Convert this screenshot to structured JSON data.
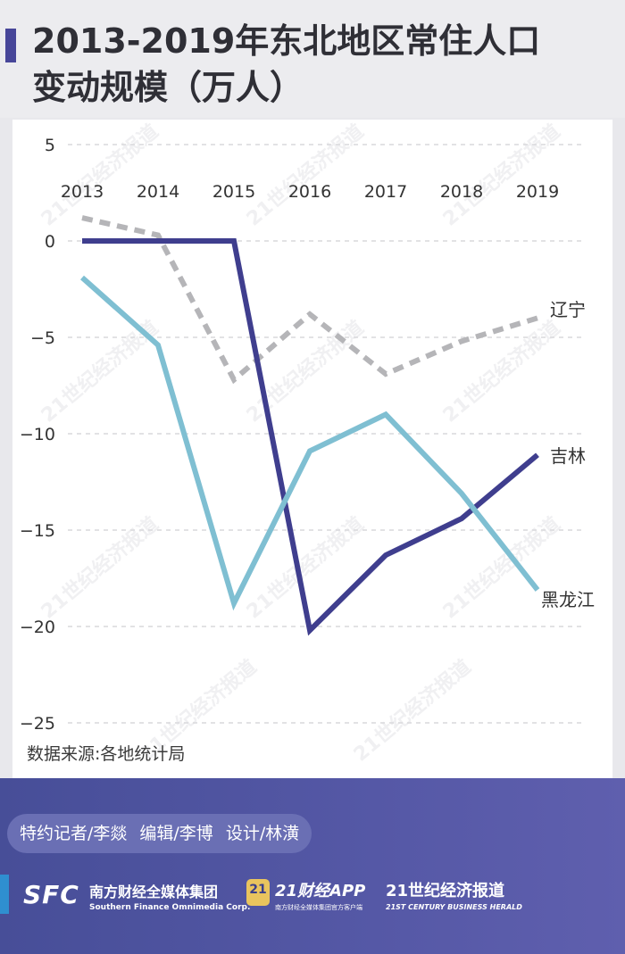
{
  "title_line1": "2013-2019年东北地区常住人口",
  "title_line2": "变动规模（万人）",
  "source": "数据来源:各地统计局",
  "credits": [
    "特约记者/李燚",
    "编辑/李博",
    "设计/林潢"
  ],
  "logos": {
    "sfc": "SFC",
    "nf_cn": "南方财经全媒体集团",
    "nf_en": "Southern Finance Omnimedia Corp.",
    "app_badge": "21",
    "app_cn": "21财经APP",
    "app_en": "南方财经全媒体集团官方客户端",
    "herald_cn": "21世纪经济报道",
    "herald_en": "21ST CENTURY BUSINESS HERALD"
  },
  "watermark": "21世纪经济报道",
  "colors": {
    "liaoning": "#b5b5b8",
    "jilin": "#3f3e8e",
    "heilongjiang": "#7fbfd2",
    "accent": "#474699"
  },
  "chart_data": {
    "type": "line",
    "x": [
      "2013",
      "2014",
      "2015",
      "2016",
      "2017",
      "2018",
      "2019"
    ],
    "ylim": [
      -25,
      5
    ],
    "yticks": [
      "5",
      "0",
      "−5",
      "−10",
      "−15",
      "−20",
      "−25"
    ],
    "ytick_values": [
      5,
      0,
      -5,
      -10,
      -15,
      -20,
      -25
    ],
    "grid": true,
    "series": [
      {
        "name": "辽宁",
        "style": "dashed",
        "color": "#b5b5b8",
        "values": [
          1.2,
          0.3,
          -7.2,
          -3.8,
          -6.9,
          -5.2,
          -4.0
        ]
      },
      {
        "name": "吉林",
        "style": "solid",
        "color": "#3f3e8e",
        "values": [
          0.0,
          0.0,
          0.0,
          -20.2,
          -16.3,
          -14.4,
          -11.1
        ]
      },
      {
        "name": "黑龙江",
        "style": "solid",
        "color": "#7fbfd2",
        "values": [
          -1.9,
          -5.4,
          -18.8,
          -10.9,
          -9.0,
          -13.1,
          -18.1
        ]
      }
    ]
  }
}
